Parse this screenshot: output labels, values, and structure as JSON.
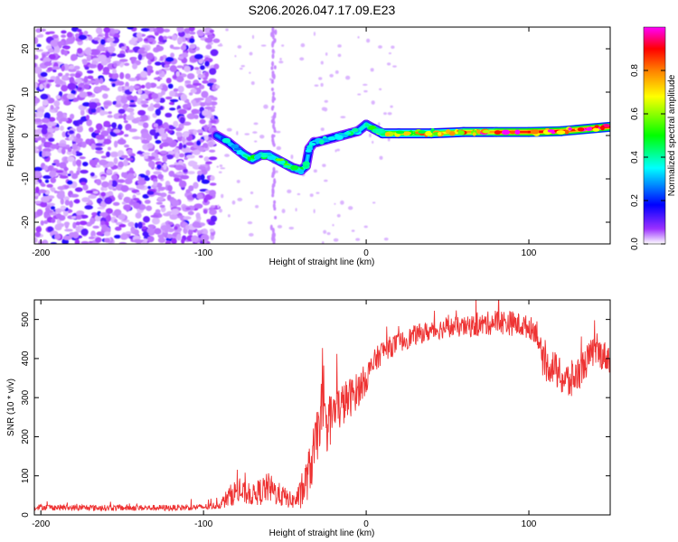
{
  "title": "S206.2026.047.17.09.E23",
  "chart_data": [
    {
      "type": "heatmap",
      "title": "S206.2026.047.17.09.E23",
      "xlabel": "Height of straight line (km)",
      "ylabel": "Frequency (Hz)",
      "xlim": [
        -204,
        150
      ],
      "ylim": [
        -25,
        25
      ],
      "x_ticks": [
        -200,
        -100,
        0,
        100
      ],
      "y_ticks": [
        -20,
        -10,
        0,
        10,
        20
      ],
      "colorbar": {
        "label": "Normalized spectral amplitude",
        "range": [
          0,
          1
        ],
        "ticks": [
          0.0,
          0.2,
          0.4,
          0.6,
          0.8
        ],
        "colors": [
          "#ffffff",
          "#9b30ff",
          "#0000ff",
          "#00ffff",
          "#00ff00",
          "#ffff00",
          "#ff8000",
          "#ff0000",
          "#ff00ff"
        ]
      },
      "noise_region": {
        "x_range": [
          -204,
          -92
        ],
        "amplitude_range": [
          0.0,
          0.25
        ]
      },
      "ridge": {
        "x": [
          -92,
          -85,
          -80,
          -75,
          -70,
          -65,
          -60,
          -55,
          -50,
          -45,
          -40,
          -37,
          -35,
          -32,
          -30,
          -25,
          -20,
          -15,
          -10,
          -5,
          0,
          5,
          10,
          20,
          40,
          60,
          80,
          100,
          120,
          150
        ],
        "frequency": [
          0,
          -1.5,
          -3,
          -4.5,
          -5.5,
          -4.5,
          -4.5,
          -5.5,
          -6.5,
          -7.5,
          -8,
          -7,
          -3,
          -1.5,
          -1.5,
          -1,
          -0.5,
          0,
          0.5,
          1,
          2.5,
          1.5,
          0.5,
          0.5,
          0.5,
          0.8,
          0.8,
          0.8,
          1,
          2
        ],
        "amplitude": [
          0.25,
          0.3,
          0.35,
          0.4,
          0.45,
          0.4,
          0.4,
          0.45,
          0.45,
          0.45,
          0.4,
          0.35,
          0.3,
          0.3,
          0.35,
          0.35,
          0.3,
          0.35,
          0.35,
          0.35,
          0.4,
          0.45,
          0.6,
          0.65,
          0.65,
          0.7,
          0.85,
          0.9,
          0.9,
          0.85
        ]
      }
    },
    {
      "type": "line",
      "xlabel": "Height of straight line (km)",
      "ylabel": "SNR (10 * v/v)",
      "xlim": [
        -204,
        150
      ],
      "ylim": [
        0,
        550
      ],
      "x_ticks": [
        -200,
        -100,
        0,
        100
      ],
      "y_ticks": [
        0,
        100,
        200,
        300,
        400,
        500
      ],
      "series": [
        {
          "name": "SNR",
          "color": "#ee3333",
          "x": [
            -204,
            -180,
            -150,
            -120,
            -100,
            -90,
            -85,
            -80,
            -75,
            -70,
            -65,
            -60,
            -55,
            -50,
            -45,
            -40,
            -35,
            -30,
            -28,
            -25,
            -20,
            -15,
            -10,
            -5,
            0,
            5,
            10,
            20,
            30,
            40,
            50,
            60,
            70,
            80,
            90,
            100,
            105,
            108,
            110,
            115,
            120,
            125,
            130,
            140,
            150
          ],
          "mean": [
            20,
            18,
            18,
            18,
            20,
            25,
            45,
            60,
            55,
            50,
            60,
            70,
            55,
            45,
            35,
            50,
            110,
            200,
            270,
            220,
            260,
            280,
            300,
            320,
            350,
            390,
            420,
            440,
            460,
            470,
            480,
            480,
            485,
            495,
            490,
            480,
            470,
            400,
            380,
            380,
            350,
            340,
            360,
            420,
            400
          ],
          "spread": [
            12,
            12,
            12,
            12,
            12,
            15,
            40,
            50,
            45,
            40,
            55,
            60,
            50,
            40,
            30,
            60,
            100,
            110,
            120,
            110,
            100,
            90,
            80,
            70,
            60,
            50,
            45,
            40,
            40,
            40,
            40,
            40,
            45,
            50,
            50,
            45,
            50,
            60,
            60,
            70,
            70,
            80,
            70,
            60,
            60
          ]
        }
      ]
    }
  ]
}
